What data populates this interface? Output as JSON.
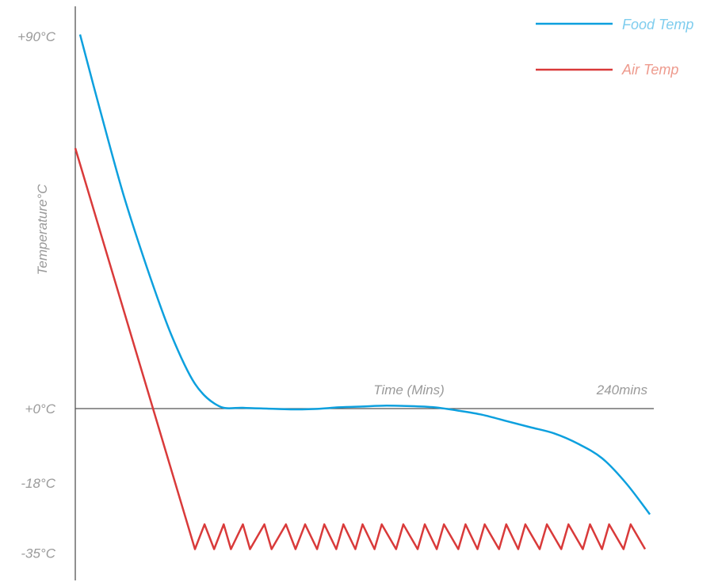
{
  "chart_data": {
    "type": "line",
    "title": "",
    "xlabel": "Time (Mins)",
    "x_end_label": "240mins",
    "ylabel": "Temperature°C",
    "xlim": [
      0,
      240
    ],
    "ylim": [
      -35,
      90
    ],
    "grid": false,
    "legend_position": "top-right",
    "y_ticks": [
      {
        "value": 90,
        "label": "+90°C"
      },
      {
        "value": 0,
        "label": "+0°C"
      },
      {
        "value": -18,
        "label": "-18°C"
      },
      {
        "value": -35,
        "label": "-35°C"
      }
    ],
    "series": [
      {
        "name": "Food Temp",
        "color": "#0da0de",
        "x": [
          2,
          10,
          20,
          30,
          40,
          50,
          60,
          70,
          80,
          90,
          100,
          110,
          120,
          130,
          140,
          150,
          160,
          170,
          180,
          190,
          200,
          210,
          220,
          230,
          240
        ],
        "y": [
          90.5,
          73,
          52,
          34,
          18,
          6,
          0.6,
          0.2,
          0,
          -0.2,
          -0.1,
          0.3,
          0.5,
          0.7,
          0.6,
          0.3,
          -0.5,
          -1.5,
          -3,
          -4.5,
          -6,
          -8.5,
          -12,
          -18,
          -25.6
        ]
      },
      {
        "name": "Air Temp",
        "color": "#d93a3a",
        "x": [
          0,
          50,
          54,
          58,
          62,
          65,
          70,
          73,
          79,
          82,
          88,
          92,
          96,
          101,
          104,
          109,
          112,
          117,
          120,
          125,
          128,
          134,
          137,
          143,
          146,
          151,
          154,
          160,
          163,
          168,
          171,
          177,
          180,
          185,
          188,
          194,
          197,
          203,
          206,
          212,
          215,
          220,
          223,
          229,
          232,
          238
        ],
        "y": [
          63,
          -34,
          -28,
          -34,
          -28,
          -34,
          -28,
          -34,
          -28,
          -34,
          -28,
          -34,
          -28,
          -34,
          -28,
          -34,
          -28,
          -34,
          -28,
          -34,
          -28,
          -34,
          -28,
          -34,
          -28,
          -34,
          -28,
          -34,
          -28,
          -34,
          -28,
          -34,
          -28,
          -34,
          -28,
          -34,
          -28,
          -34,
          -28,
          -34,
          -28,
          -34,
          -28,
          -34,
          -28,
          -34
        ]
      }
    ]
  }
}
